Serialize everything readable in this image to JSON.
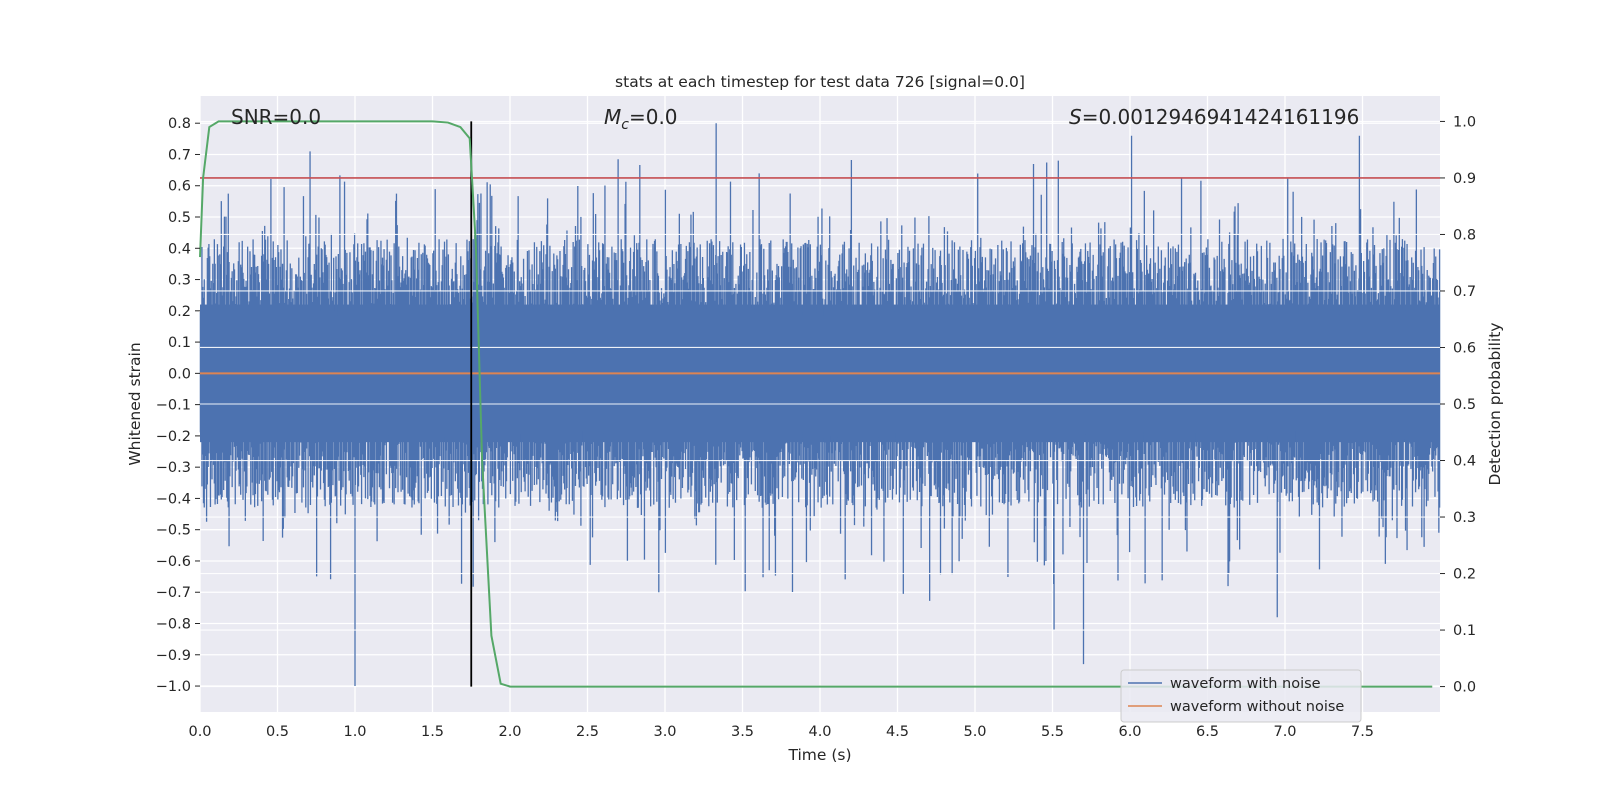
{
  "chart_data": {
    "type": "line",
    "title": "stats at each timestep for test data 726 [signal=0.0]",
    "xlabel": "Time (s)",
    "ylabel": "Whitened strain",
    "y2label": "Detection probability",
    "xlim": [
      0.0,
      8.0
    ],
    "ylim": [
      -1.083,
      0.887
    ],
    "y2lim": [
      -0.045,
      1.045
    ],
    "xticks": [
      0.0,
      0.5,
      1.0,
      1.5,
      2.0,
      2.5,
      3.0,
      3.5,
      4.0,
      4.5,
      5.0,
      5.5,
      6.0,
      6.5,
      7.0,
      7.5
    ],
    "yticks": [
      0.8,
      0.7,
      0.6,
      0.5,
      0.4,
      0.3,
      0.2,
      0.1,
      0.0,
      -0.1,
      -0.2,
      -0.3,
      -0.4,
      -0.5,
      -0.6,
      -0.7,
      -0.8,
      -0.9,
      -1.0
    ],
    "y2ticks": [
      1.0,
      0.9,
      0.8,
      0.7,
      0.6,
      0.5,
      0.4,
      0.3,
      0.2,
      0.1,
      0.0
    ],
    "grid": true,
    "legend_position": "lower-right",
    "annotations": {
      "snr": "SNR=0.0",
      "mc": "=0.0",
      "mc_symbol": "M",
      "mc_sub": "c",
      "s": "=0.0012946941424161196",
      "s_symbol": "S"
    },
    "series": [
      {
        "name": "waveform with noise",
        "color": "#4c72b0",
        "axis": "left",
        "description_values": {
          "sample_count": 1600,
          "x_range": [
            0.0,
            8.0
          ],
          "typical_amplitude": 0.25,
          "max": 0.8,
          "min": -1.0
        },
        "peaks": [
          {
            "x": 1.0,
            "y": -1.0
          },
          {
            "x": 3.33,
            "y": 0.8
          },
          {
            "x": 5.7,
            "y": -0.93
          },
          {
            "x": 5.51,
            "y": -0.82
          },
          {
            "x": 0.71,
            "y": 0.71
          },
          {
            "x": 6.01,
            "y": 0.76
          },
          {
            "x": 7.48,
            "y": 0.76
          },
          {
            "x": 6.95,
            "y": -0.78
          },
          {
            "x": 2.96,
            "y": -0.7
          }
        ]
      },
      {
        "name": "waveform without noise",
        "color": "#dd8452",
        "axis": "left",
        "x": [
          0.0,
          8.0
        ],
        "y": [
          0.0,
          0.0
        ]
      },
      {
        "name": "",
        "color": "#55a868",
        "axis": "right",
        "x": [
          0.0,
          0.02,
          0.06,
          0.12,
          0.2,
          0.5,
          1.0,
          1.5,
          1.6,
          1.68,
          1.74,
          1.78,
          1.82,
          1.88,
          1.94,
          2.0,
          3.0,
          5.0,
          7.0,
          7.95
        ],
        "y": [
          0.76,
          0.9,
          0.99,
          1.0,
          1.0,
          1.0,
          1.0,
          1.0,
          0.998,
          0.99,
          0.97,
          0.78,
          0.4,
          0.09,
          0.005,
          0.0,
          0.0,
          0.0,
          0.0,
          0.0
        ]
      }
    ],
    "hlines": [
      {
        "axis": "right",
        "y": 0.9,
        "color": "#c44e52"
      }
    ],
    "vlines": [
      {
        "x": 1.75,
        "y2_range": [
          0.0,
          1.0
        ],
        "color": "#000000"
      }
    ]
  }
}
